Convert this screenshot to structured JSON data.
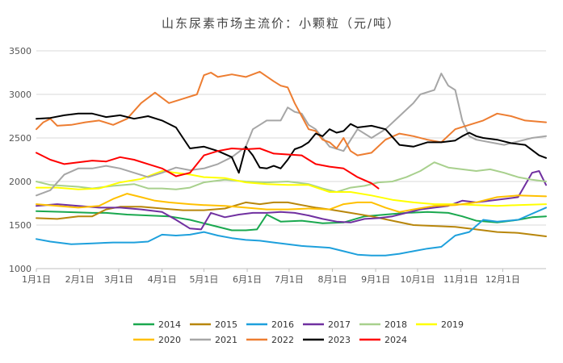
{
  "chart_data": {
    "type": "line",
    "title": "山东尿素市场主流价：小颗粒（元/吨）",
    "xlabel": "",
    "ylabel": "",
    "ylim": [
      1000,
      3500
    ],
    "yticks": [
      1000,
      1500,
      2000,
      2500,
      3000,
      3500
    ],
    "xlim": [
      0,
      365
    ],
    "xticks": [
      {
        "label": "1月1日",
        "day": 0
      },
      {
        "label": "2月1日",
        "day": 31
      },
      {
        "label": "3月1日",
        "day": 59
      },
      {
        "label": "4月1日",
        "day": 90
      },
      {
        "label": "5月1日",
        "day": 120
      },
      {
        "label": "6月1日",
        "day": 151
      },
      {
        "label": "7月1日",
        "day": 181
      },
      {
        "label": "8月1日",
        "day": 212
      },
      {
        "label": "9月1日",
        "day": 243
      },
      {
        "label": "10月1日",
        "day": 273
      },
      {
        "label": "11月1日",
        "day": 304
      },
      {
        "label": "12月1日",
        "day": 334
      }
    ],
    "grid": "horizontal",
    "legend_position": "bottom",
    "series": [
      {
        "name": "2014",
        "color": "#1aa84f",
        "x": [
          0,
          20,
          40,
          50,
          65,
          80,
          95,
          110,
          125,
          140,
          150,
          158,
          165,
          175,
          190,
          205,
          220,
          235,
          250,
          265,
          280,
          295,
          305,
          315,
          330,
          345,
          355,
          365
        ],
        "values": [
          1660,
          1650,
          1640,
          1640,
          1620,
          1610,
          1600,
          1560,
          1500,
          1440,
          1440,
          1450,
          1620,
          1540,
          1550,
          1520,
          1530,
          1600,
          1620,
          1640,
          1650,
          1640,
          1600,
          1550,
          1530,
          1560,
          1590,
          1600
        ]
      },
      {
        "name": "2015",
        "color": "#b8860b",
        "x": [
          0,
          15,
          30,
          40,
          50,
          60,
          75,
          90,
          105,
          120,
          135,
          150,
          160,
          170,
          180,
          190,
          200,
          210,
          225,
          240,
          255,
          270,
          285,
          300,
          315,
          330,
          345,
          365
        ],
        "values": [
          1580,
          1570,
          1600,
          1600,
          1680,
          1710,
          1710,
          1690,
          1670,
          1670,
          1690,
          1760,
          1740,
          1760,
          1760,
          1730,
          1700,
          1680,
          1640,
          1600,
          1550,
          1500,
          1490,
          1480,
          1450,
          1420,
          1410,
          1370
        ]
      },
      {
        "name": "2016",
        "color": "#1ea0dc",
        "x": [
          0,
          10,
          25,
          40,
          55,
          70,
          80,
          90,
          100,
          110,
          120,
          130,
          140,
          150,
          160,
          170,
          180,
          190,
          200,
          210,
          220,
          230,
          240,
          250,
          260,
          270,
          280,
          290,
          300,
          310,
          320,
          330,
          345,
          365
        ],
        "values": [
          1340,
          1310,
          1280,
          1290,
          1300,
          1300,
          1310,
          1390,
          1380,
          1390,
          1420,
          1380,
          1350,
          1330,
          1320,
          1300,
          1280,
          1260,
          1250,
          1240,
          1200,
          1160,
          1150,
          1150,
          1170,
          1200,
          1230,
          1250,
          1380,
          1420,
          1560,
          1540,
          1560,
          1700
        ]
      },
      {
        "name": "2017",
        "color": "#7030a0",
        "x": [
          0,
          15,
          30,
          45,
          60,
          75,
          90,
          100,
          110,
          118,
          125,
          135,
          145,
          155,
          165,
          175,
          185,
          195,
          205,
          215,
          225,
          235,
          245,
          255,
          265,
          275,
          285,
          295,
          305,
          315,
          325,
          335,
          345,
          355,
          360,
          365
        ],
        "values": [
          1720,
          1740,
          1720,
          1700,
          1700,
          1680,
          1650,
          1560,
          1460,
          1450,
          1640,
          1590,
          1620,
          1640,
          1640,
          1650,
          1640,
          1610,
          1570,
          1540,
          1530,
          1570,
          1580,
          1600,
          1640,
          1680,
          1700,
          1720,
          1780,
          1760,
          1780,
          1800,
          1820,
          2100,
          2120,
          1960
        ]
      },
      {
        "name": "2018",
        "color": "#a8d08d",
        "x": [
          0,
          10,
          20,
          30,
          40,
          55,
          70,
          80,
          90,
          100,
          110,
          120,
          135,
          150,
          165,
          180,
          195,
          205,
          215,
          225,
          235,
          245,
          255,
          265,
          275,
          285,
          295,
          305,
          315,
          325,
          335,
          345,
          355,
          365
        ],
        "values": [
          2000,
          1960,
          1950,
          1940,
          1920,
          1950,
          1970,
          1920,
          1920,
          1910,
          1930,
          1990,
          2020,
          2000,
          1990,
          2000,
          1970,
          1920,
          1880,
          1930,
          1950,
          1990,
          2000,
          2050,
          2120,
          2220,
          2160,
          2140,
          2120,
          2140,
          2100,
          2050,
          2020,
          2000
        ]
      },
      {
        "name": "2019",
        "color": "#ffff00",
        "x": [
          0,
          15,
          30,
          45,
          60,
          75,
          90,
          100,
          110,
          120,
          135,
          150,
          165,
          180,
          195,
          210,
          225,
          240,
          255,
          270,
          285,
          300,
          315,
          330,
          345,
          365
        ],
        "values": [
          1930,
          1930,
          1910,
          1920,
          1990,
          2030,
          2120,
          2100,
          2080,
          2050,
          2040,
          1990,
          1970,
          1960,
          1960,
          1880,
          1880,
          1840,
          1790,
          1760,
          1740,
          1740,
          1730,
          1720,
          1730,
          1740
        ]
      },
      {
        "name": "2020",
        "color": "#ffc000",
        "x": [
          0,
          15,
          30,
          45,
          55,
          65,
          75,
          85,
          95,
          110,
          120,
          135,
          150,
          165,
          180,
          195,
          210,
          220,
          230,
          240,
          250,
          260,
          270,
          285,
          300,
          315,
          330,
          345,
          365
        ],
        "values": [
          1740,
          1720,
          1700,
          1720,
          1800,
          1860,
          1820,
          1780,
          1760,
          1740,
          1730,
          1720,
          1700,
          1680,
          1680,
          1690,
          1680,
          1740,
          1760,
          1760,
          1700,
          1650,
          1680,
          1720,
          1730,
          1760,
          1820,
          1840,
          1830
        ]
      },
      {
        "name": "2021",
        "color": "#a6a6a6",
        "x": [
          0,
          10,
          20,
          30,
          40,
          50,
          60,
          70,
          80,
          90,
          100,
          110,
          120,
          130,
          140,
          150,
          155,
          160,
          165,
          175,
          180,
          185,
          190,
          195,
          200,
          210,
          220,
          230,
          240,
          250,
          260,
          270,
          275,
          285,
          290,
          295,
          300,
          305,
          310,
          315,
          325,
          335,
          345,
          355,
          365
        ],
        "values": [
          1840,
          1900,
          2080,
          2150,
          2150,
          2180,
          2150,
          2100,
          2050,
          2100,
          2160,
          2130,
          2150,
          2200,
          2280,
          2400,
          2600,
          2650,
          2700,
          2700,
          2850,
          2800,
          2780,
          2650,
          2600,
          2400,
          2350,
          2600,
          2500,
          2600,
          2750,
          2900,
          3000,
          3050,
          3240,
          3100,
          3050,
          2700,
          2520,
          2480,
          2450,
          2420,
          2460,
          2500,
          2520
        ]
      },
      {
        "name": "2022",
        "color": "#ed7d31",
        "x": [
          0,
          5,
          10,
          15,
          25,
          35,
          45,
          55,
          65,
          75,
          85,
          95,
          105,
          115,
          120,
          125,
          130,
          140,
          150,
          160,
          170,
          175,
          180,
          185,
          190,
          195,
          200,
          205,
          210,
          215,
          220,
          225,
          230,
          240,
          250,
          260,
          270,
          280,
          290,
          300,
          310,
          320,
          330,
          340,
          350,
          365
        ],
        "values": [
          2600,
          2680,
          2720,
          2640,
          2650,
          2680,
          2700,
          2650,
          2720,
          2900,
          3020,
          2900,
          2950,
          3000,
          3220,
          3250,
          3200,
          3230,
          3200,
          3260,
          3150,
          3100,
          3080,
          2900,
          2750,
          2600,
          2580,
          2480,
          2450,
          2380,
          2500,
          2350,
          2300,
          2330,
          2480,
          2550,
          2520,
          2480,
          2450,
          2600,
          2650,
          2700,
          2780,
          2750,
          2700,
          2680
        ]
      },
      {
        "name": "2023",
        "color": "#000000",
        "x": [
          0,
          10,
          20,
          30,
          40,
          50,
          60,
          70,
          80,
          90,
          100,
          105,
          110,
          120,
          130,
          140,
          145,
          150,
          155,
          160,
          165,
          170,
          175,
          180,
          185,
          190,
          195,
          200,
          205,
          210,
          215,
          220,
          225,
          230,
          240,
          250,
          260,
          270,
          280,
          290,
          300,
          305,
          310,
          315,
          320,
          330,
          340,
          350,
          360,
          365
        ],
        "values": [
          2720,
          2730,
          2760,
          2780,
          2780,
          2740,
          2760,
          2720,
          2750,
          2700,
          2620,
          2500,
          2380,
          2400,
          2350,
          2280,
          2100,
          2400,
          2300,
          2160,
          2150,
          2180,
          2150,
          2250,
          2370,
          2400,
          2450,
          2550,
          2520,
          2600,
          2560,
          2580,
          2660,
          2620,
          2640,
          2600,
          2420,
          2400,
          2450,
          2450,
          2470,
          2520,
          2560,
          2520,
          2500,
          2480,
          2440,
          2420,
          2300,
          2270
        ]
      },
      {
        "name": "2024",
        "color": "#ff0000",
        "x": [
          0,
          10,
          20,
          30,
          40,
          50,
          60,
          70,
          80,
          90,
          100,
          110,
          120,
          130,
          140,
          150,
          160,
          170,
          180,
          190,
          200,
          210,
          220,
          230,
          240,
          245
        ],
        "values": [
          2330,
          2250,
          2200,
          2220,
          2240,
          2230,
          2280,
          2250,
          2200,
          2150,
          2060,
          2100,
          2300,
          2350,
          2380,
          2370,
          2380,
          2320,
          2310,
          2300,
          2200,
          2170,
          2150,
          2050,
          1980,
          1920
        ]
      }
    ]
  }
}
